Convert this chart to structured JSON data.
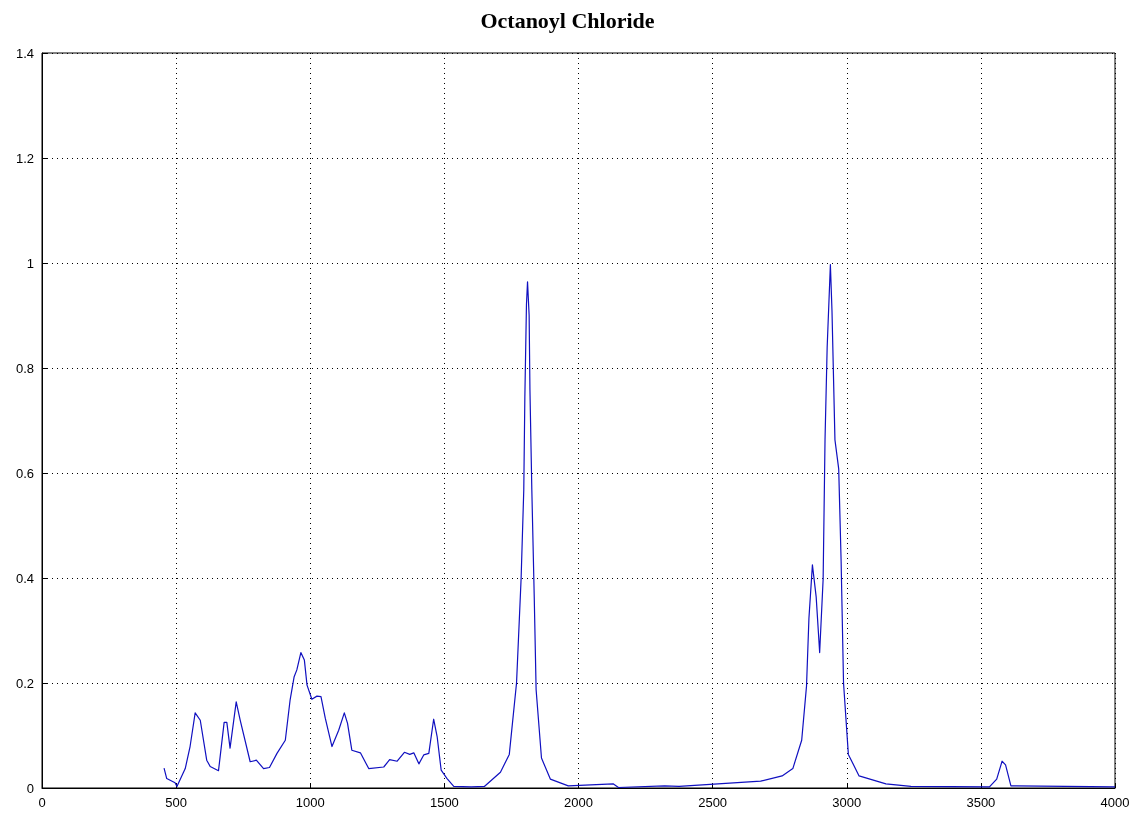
{
  "chart_data": {
    "type": "line",
    "title": "Octanoyl Chloride",
    "x": [
      455,
      465,
      496,
      503,
      534,
      552,
      571,
      590,
      614,
      627,
      658,
      679,
      689,
      701,
      724,
      739,
      776,
      799,
      826,
      848,
      876,
      907,
      925,
      940,
      950,
      965,
      978,
      988,
      1006,
      1025,
      1040,
      1056,
      1081,
      1106,
      1127,
      1139,
      1155,
      1187,
      1218,
      1274,
      1296,
      1324,
      1351,
      1371,
      1386,
      1405,
      1423,
      1442,
      1460,
      1473,
      1488,
      1510,
      1535,
      1600,
      1649,
      1709,
      1742,
      1769,
      1786,
      1796,
      1800,
      1806,
      1810,
      1816,
      1819,
      1826,
      1835,
      1842,
      1862,
      1895,
      1962,
      2129,
      2149,
      2321,
      2375,
      2679,
      2759,
      2799,
      2832,
      2850,
      2859,
      2872,
      2886,
      2899,
      2912,
      2919,
      2927,
      2939,
      2945,
      2956,
      2970,
      2979,
      2988,
      3006,
      3046,
      3146,
      3239,
      3532,
      3559,
      3579,
      3592,
      3612,
      4000
    ],
    "series": [
      {
        "color": "#1010c0",
        "values": [
          0.038,
          0.018,
          0.01,
          0.003,
          0.037,
          0.079,
          0.143,
          0.129,
          0.053,
          0.041,
          0.033,
          0.125,
          0.125,
          0.076,
          0.164,
          0.129,
          0.05,
          0.053,
          0.037,
          0.039,
          0.066,
          0.091,
          0.168,
          0.212,
          0.225,
          0.258,
          0.244,
          0.196,
          0.169,
          0.175,
          0.174,
          0.133,
          0.079,
          0.11,
          0.143,
          0.123,
          0.072,
          0.067,
          0.037,
          0.04,
          0.054,
          0.051,
          0.068,
          0.064,
          0.067,
          0.046,
          0.063,
          0.066,
          0.131,
          0.098,
          0.034,
          0.018,
          0.003,
          0.002,
          0.003,
          0.03,
          0.064,
          0.2,
          0.398,
          0.568,
          0.745,
          0.921,
          0.964,
          0.9,
          0.758,
          0.568,
          0.364,
          0.187,
          0.057,
          0.017,
          0.004,
          0.008,
          0.001,
          0.004,
          0.003,
          0.013,
          0.023,
          0.037,
          0.091,
          0.194,
          0.323,
          0.425,
          0.364,
          0.258,
          0.398,
          0.663,
          0.84,
          0.997,
          0.908,
          0.663,
          0.608,
          0.432,
          0.2,
          0.064,
          0.023,
          0.008,
          0.003,
          0.002,
          0.017,
          0.051,
          0.044,
          0.004,
          0.002
        ]
      }
    ],
    "xlim": [
      0,
      4000
    ],
    "xticks": [
      0,
      500,
      1000,
      1500,
      2000,
      2500,
      3000,
      3500,
      4000
    ],
    "ylim": [
      0,
      1.4
    ],
    "yticks": [
      0,
      0.2,
      0.4,
      0.6,
      0.8,
      1,
      1.2,
      1.4
    ],
    "grid": true,
    "marker": "none",
    "line_style": "solid"
  }
}
